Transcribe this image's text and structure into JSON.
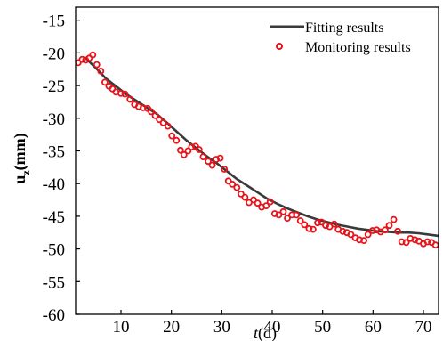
{
  "chart_data": {
    "type": "scatter",
    "xlabel_italic": "t",
    "xlabel_rest": "(d)",
    "ylabel_main": "u",
    "ylabel_sub": "z",
    "ylabel_rest": "(mm)",
    "xlim": [
      1,
      73
    ],
    "ylim": [
      -60,
      -13
    ],
    "xticks": [
      10,
      20,
      30,
      40,
      50,
      60,
      70
    ],
    "yticks": [
      -15,
      -20,
      -25,
      -30,
      -35,
      -40,
      -45,
      -50,
      -55,
      -60
    ],
    "grid": false,
    "legend_position": "top-right",
    "series": [
      {
        "name": "Fitting results",
        "kind": "line",
        "color": "#3a3a3a",
        "x": [
          3,
          5,
          7,
          9,
          11,
          13,
          15,
          17,
          19,
          21,
          23,
          25,
          27,
          29,
          31,
          33,
          35,
          37,
          39,
          41,
          43,
          45,
          47,
          49,
          51,
          53,
          55,
          57,
          59,
          61,
          63,
          65,
          67,
          69,
          71,
          73
        ],
        "y": [
          -20.8,
          -22.3,
          -23.9,
          -25.1,
          -26.3,
          -27.3,
          -28.3,
          -29.3,
          -30.6,
          -32.0,
          -33.4,
          -34.6,
          -35.8,
          -36.9,
          -38.1,
          -39.3,
          -40.3,
          -41.3,
          -42.3,
          -43.1,
          -43.8,
          -44.4,
          -45.0,
          -45.5,
          -45.9,
          -46.3,
          -46.6,
          -46.9,
          -47.1,
          -47.3,
          -47.4,
          -47.5,
          -47.5,
          -47.6,
          -47.8,
          -48.0
        ]
      },
      {
        "name": "Monitoring results",
        "kind": "scatter",
        "color": "#e8141b",
        "x": [
          1.5,
          2.3,
          3.0,
          3.7,
          4.4,
          5.2,
          6.0,
          6.8,
          7.6,
          8.3,
          9.0,
          10.0,
          10.8,
          11.8,
          12.7,
          13.5,
          14.4,
          15.3,
          16.0,
          16.8,
          17.6,
          18.4,
          19.3,
          20.1,
          21.0,
          21.8,
          22.5,
          23.3,
          24.0,
          24.8,
          25.5,
          26.3,
          27.3,
          28.1,
          28.9,
          29.7,
          30.5,
          31.3,
          32.1,
          33.0,
          33.8,
          34.6,
          35.4,
          36.3,
          37.1,
          37.9,
          38.8,
          39.6,
          40.5,
          41.3,
          42.2,
          43.0,
          43.9,
          44.8,
          45.6,
          46.4,
          47.3,
          48.1,
          49.0,
          49.8,
          50.6,
          51.4,
          52.3,
          53.1,
          54.0,
          54.8,
          55.6,
          56.5,
          57.3,
          58.2,
          59.0,
          59.9,
          60.7,
          61.5,
          62.4,
          63.2,
          64.1,
          64.9,
          65.7,
          66.6,
          67.4,
          68.3,
          69.1,
          70.0,
          70.8,
          71.6,
          72.4
        ],
        "y": [
          -21.5,
          -21.0,
          -21.1,
          -20.8,
          -20.3,
          -21.8,
          -22.8,
          -24.5,
          -25.1,
          -25.5,
          -26.0,
          -26.2,
          -26.3,
          -27.1,
          -27.9,
          -28.2,
          -28.4,
          -28.5,
          -29.0,
          -29.6,
          -30.2,
          -30.7,
          -31.2,
          -32.7,
          -33.4,
          -34.9,
          -35.6,
          -35.0,
          -34.4,
          -34.3,
          -34.8,
          -35.9,
          -36.6,
          -37.2,
          -36.3,
          -36.1,
          -37.8,
          -39.6,
          -40.1,
          -40.6,
          -41.6,
          -42.1,
          -42.9,
          -42.5,
          -43.0,
          -43.6,
          -43.4,
          -42.8,
          -44.6,
          -44.8,
          -44.3,
          -45.3,
          -44.8,
          -44.8,
          -45.7,
          -46.3,
          -46.9,
          -47.0,
          -46.0,
          -45.9,
          -46.4,
          -46.6,
          -46.2,
          -47.0,
          -47.3,
          -47.5,
          -47.8,
          -48.3,
          -48.6,
          -48.7,
          -47.8,
          -47.2,
          -47.1,
          -47.4,
          -47.1,
          -46.4,
          -45.5,
          -47.3,
          -48.9,
          -49.0,
          -48.4,
          -48.6,
          -48.8,
          -49.2,
          -48.9,
          -49.0,
          -49.4
        ]
      }
    ]
  }
}
